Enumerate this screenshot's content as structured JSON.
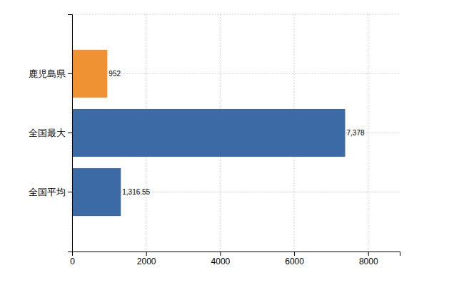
{
  "chart_data": {
    "type": "bar",
    "orientation": "horizontal",
    "categories": [
      "鹿児島県",
      "全国最大",
      "全国平均"
    ],
    "values": [
      952,
      7378,
      1316.55
    ],
    "value_labels": [
      "952",
      "7,378",
      "1,316.55"
    ],
    "colors": [
      "#ef9234",
      "#3b6aa5",
      "#3b6aa5"
    ],
    "xlim": [
      0,
      8853.6
    ],
    "xticks": [
      0,
      2000,
      4000,
      6000,
      8000
    ],
    "grid": true,
    "data_labels": true
  }
}
